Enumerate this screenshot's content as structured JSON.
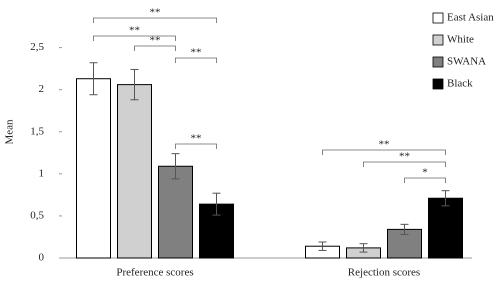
{
  "chart_data": {
    "type": "bar",
    "y_label": "Mean",
    "categories": [
      "Preference scores",
      "Rejection scores"
    ],
    "series": [
      {
        "name": "East Asian",
        "color": "#ffffff",
        "values": [
          2.13,
          0.14
        ],
        "errors": [
          0.19,
          0.05
        ]
      },
      {
        "name": "White",
        "color": "#d0d0d0",
        "values": [
          2.06,
          0.12
        ],
        "errors": [
          0.18,
          0.05
        ]
      },
      {
        "name": "SWANA",
        "color": "#808080",
        "values": [
          1.09,
          0.34
        ],
        "errors": [
          0.15,
          0.06
        ]
      },
      {
        "name": "Black",
        "color": "#000000",
        "values": [
          0.64,
          0.71
        ],
        "errors": [
          0.13,
          0.09
        ]
      }
    ],
    "ylim": [
      0,
      3
    ],
    "yticks": [
      0,
      {
        "value": 0.5,
        "label": "0,5"
      },
      1,
      {
        "value": 1.5,
        "label": "1,5"
      },
      2,
      {
        "value": 2.5,
        "label": "2,5"
      }
    ],
    "significance": [
      "**",
      "**",
      "**",
      "**",
      "**",
      "**",
      "**",
      "*"
    ],
    "legend": "upper right"
  }
}
